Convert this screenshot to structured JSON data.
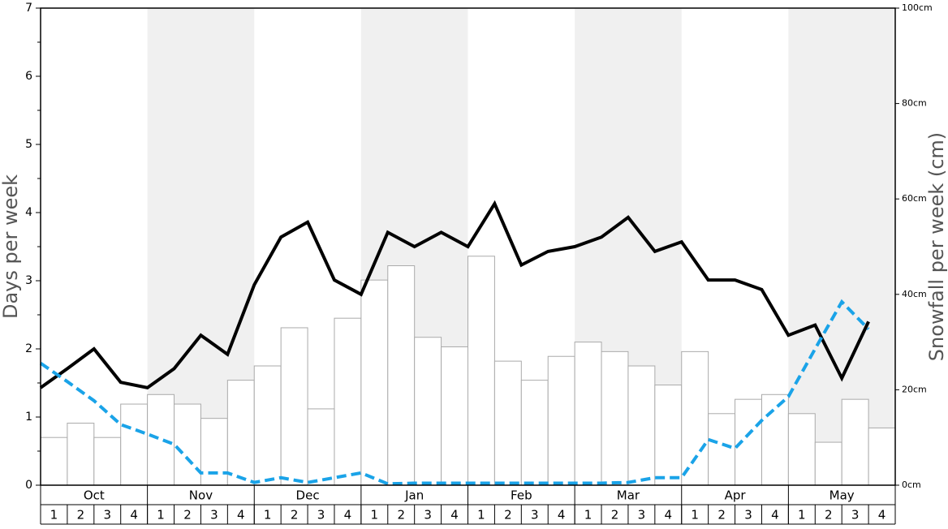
{
  "chart_data": {
    "type": "bar",
    "ylabel": "Days per week",
    "y2label": "Snowfall per week (cm)",
    "months": [
      "Oct",
      "Nov",
      "Dec",
      "Jan",
      "Feb",
      "Mar",
      "Apr",
      "May"
    ],
    "categories": [
      "1",
      "2",
      "3",
      "4",
      "1",
      "2",
      "3",
      "4",
      "1",
      "2",
      "3",
      "4",
      "1",
      "2",
      "3",
      "4",
      "1",
      "2",
      "3",
      "4",
      "1",
      "2",
      "3",
      "4",
      "1",
      "2",
      "3",
      "4",
      "1",
      "2",
      "3",
      "4"
    ],
    "ylim": [
      0,
      7
    ],
    "yticks": [
      0,
      1,
      2,
      3,
      4,
      5,
      6,
      7
    ],
    "y2lim": [
      0,
      100
    ],
    "y2ticks": [
      {
        "value": 0,
        "label": "0cm"
      },
      {
        "value": 20,
        "label": "20cm"
      },
      {
        "value": 40,
        "label": "40cm"
      },
      {
        "value": 60,
        "label": "60cm"
      },
      {
        "value": 80,
        "label": "80cm"
      },
      {
        "value": 100,
        "label": "100cm"
      }
    ],
    "series": [
      {
        "type": "bar",
        "axis": "y2",
        "color": "#ffffff",
        "values": [
          10,
          13,
          10,
          17,
          19,
          17,
          14,
          22,
          25,
          33,
          16,
          35,
          43,
          46,
          31,
          29,
          48,
          26,
          22,
          27,
          30,
          28,
          25,
          21,
          28,
          15,
          18,
          19,
          15,
          9,
          18,
          12
        ]
      },
      {
        "type": "line",
        "color": "#000000",
        "dashed": false,
        "values": [
          1.43,
          1.71,
          2.0,
          1.51,
          1.43,
          1.71,
          2.2,
          1.92,
          2.94,
          3.64,
          3.86,
          3.01,
          2.8,
          3.71,
          3.5,
          3.71,
          3.5,
          4.13,
          3.23,
          3.43,
          3.5,
          3.64,
          3.93,
          3.43,
          3.57,
          3.01,
          3.01,
          2.87,
          2.2,
          2.35,
          1.57,
          2.4
        ]
      },
      {
        "type": "line",
        "color": "#1aa3e8",
        "dashed": true,
        "values": [
          1.79,
          1.52,
          1.24,
          0.89,
          0.75,
          0.6,
          0.18,
          0.18,
          0.04,
          0.11,
          0.04,
          0.11,
          0.18,
          0.02,
          0.03,
          0.03,
          0.03,
          0.03,
          0.03,
          0.03,
          0.03,
          0.03,
          0.04,
          0.11,
          0.11,
          0.67,
          0.54,
          0.95,
          1.3,
          2.0,
          2.69,
          2.29
        ]
      }
    ]
  }
}
